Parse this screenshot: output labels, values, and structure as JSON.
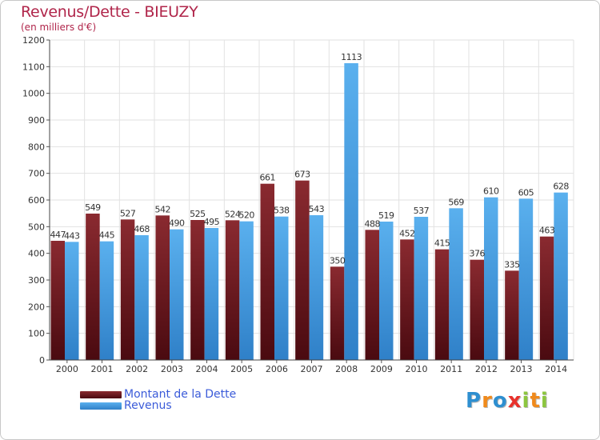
{
  "title": "Revenus/Dette - BIEUZY",
  "subtitle": "(en milliers d'€)",
  "legend": [
    {
      "label": "Montant de la Dette",
      "color": "#7a1a22"
    },
    {
      "label": "Revenus",
      "color": "#4aa3e6"
    }
  ],
  "logo": {
    "letters": [
      {
        "ch": "P",
        "color": "#2e8fd0"
      },
      {
        "ch": "r",
        "color": "#f08a1c"
      },
      {
        "ch": "o",
        "color": "#2e8fd0"
      },
      {
        "ch": "x",
        "color": "#e8322c"
      },
      {
        "ch": "i",
        "color": "#8cc63f"
      },
      {
        "ch": "t",
        "color": "#f08a1c"
      },
      {
        "ch": "i",
        "color": "#8cc63f"
      }
    ]
  },
  "chart_data": {
    "type": "bar",
    "title": "Revenus/Dette - BIEUZY",
    "subtitle": "(en milliers d'€)",
    "categories": [
      "2000",
      "2001",
      "2002",
      "2003",
      "2004",
      "2005",
      "2006",
      "2007",
      "2008",
      "2009",
      "2010",
      "2011",
      "2012",
      "2013",
      "2014"
    ],
    "series": [
      {
        "name": "Montant de la Dette",
        "color": "#7a1a22",
        "values": [
          447,
          549,
          527,
          542,
          525,
          524,
          661,
          673,
          350,
          488,
          452,
          415,
          376,
          335,
          463
        ]
      },
      {
        "name": "Revenus",
        "color": "#4aa3e6",
        "values": [
          443,
          445,
          468,
          490,
          495,
          520,
          538,
          543,
          1113,
          519,
          537,
          569,
          610,
          605,
          628
        ]
      }
    ],
    "ylim": [
      0,
      1200
    ],
    "yticks": [
      0,
      100,
      200,
      300,
      400,
      500,
      600,
      700,
      800,
      900,
      1000,
      1100,
      1200
    ],
    "grid": true,
    "legend_position": "bottom-left"
  }
}
